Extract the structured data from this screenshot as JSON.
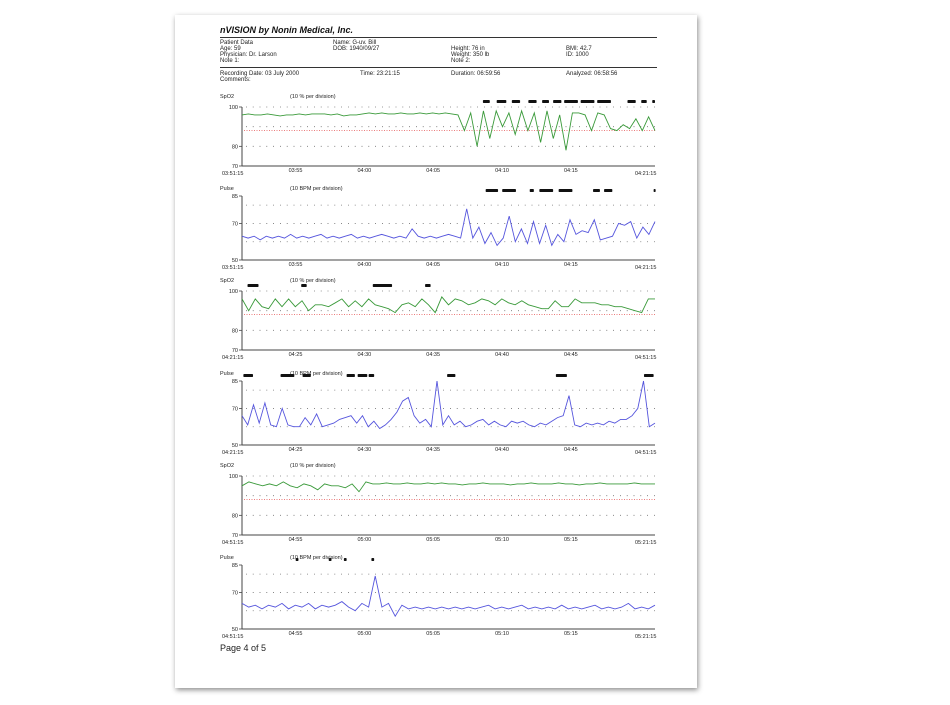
{
  "header": {
    "title": "nVISION by Nonin Medical, Inc.",
    "patient_data": "Patient Data",
    "name": "Name: G-uv. Bill",
    "age": "Age: 59",
    "dob": "DOB: 1940/09/27",
    "height": "Height: 76 in",
    "bmi": "BMI: 42.7",
    "physician": "Physician: Dr. Larson",
    "weight": "Weight: 350 lb",
    "id": "ID: 1000",
    "note1": "Note 1:",
    "note2": "Note 2:",
    "recording_date": "Recording Date: 03 July 2000",
    "time": "Time: 23:21:15",
    "duration": "Duration: 06:59:56",
    "analyzed": "Analyzed: 06:58:56",
    "comments": "Comments:"
  },
  "footer": {
    "page": "Page 4 of 5"
  },
  "colors": {
    "spo2": "#3a9a3a",
    "pulse": "#5555dd",
    "threshold": "#e03030",
    "event": "#111111"
  },
  "chart_data": [
    {
      "type": "line",
      "label": "SpO2",
      "division": "(10 % per division)",
      "yticks": [
        "100",
        "80",
        "70"
      ],
      "ytick_values": [
        100,
        80,
        70
      ],
      "ylim": [
        70,
        100
      ],
      "gridlines": [
        100,
        90,
        80
      ],
      "threshold": 88,
      "xticks": [
        "03:51:15",
        "03:55",
        "04:00",
        "04:05",
        "04:10",
        "04:15",
        "04:21:15"
      ],
      "xtick_minutes": [
        0,
        3.75,
        8.75,
        13.75,
        18.75,
        23.75,
        30
      ],
      "events": [
        [
          17.5,
          18
        ],
        [
          18.5,
          19.2
        ],
        [
          19.6,
          20.2
        ],
        [
          20.8,
          21.4
        ],
        [
          21.8,
          22.3
        ],
        [
          22.6,
          23.2
        ],
        [
          23.4,
          24.4
        ],
        [
          24.6,
          25.6
        ],
        [
          25.8,
          26.8
        ],
        [
          28.0,
          28.6
        ],
        [
          29.0,
          29.4
        ],
        [
          29.8,
          30
        ]
      ],
      "values": [
        96,
        96.5,
        96,
        96,
        96.5,
        96,
        95.5,
        96,
        96,
        96.5,
        96,
        96.5,
        96.5,
        96.5,
        96,
        96.5,
        95.5,
        96,
        96,
        96.5,
        97,
        96.5,
        97,
        96.5,
        96.5,
        97,
        96.5,
        96.5,
        97,
        96.5,
        97,
        96.5,
        97,
        96.5,
        96,
        88,
        97,
        80,
        98,
        84,
        98,
        90,
        97,
        86,
        98,
        88,
        97,
        82,
        98,
        84,
        96,
        78,
        97,
        97,
        96,
        88,
        97,
        96,
        89,
        88,
        91,
        89,
        94,
        88,
        95,
        88
      ]
    },
    {
      "type": "line",
      "label": "Pulse",
      "division": "(10 BPM per division)",
      "yticks": [
        "85",
        "70",
        "50"
      ],
      "ytick_values": [
        85,
        70,
        50
      ],
      "ylim": [
        50,
        85
      ],
      "gridlines": [
        80,
        70,
        60
      ],
      "xticks": [
        "03:51:15",
        "03:55",
        "04:00",
        "04:05",
        "04:10",
        "04:15",
        "04:21:15"
      ],
      "xtick_minutes": [
        0,
        3.75,
        8.75,
        13.75,
        18.75,
        23.75,
        30
      ],
      "events": [
        [
          17.7,
          18.6
        ],
        [
          18.9,
          19.9
        ],
        [
          20.9,
          21.2
        ],
        [
          21.6,
          22.6
        ],
        [
          23.0,
          24.0
        ],
        [
          25.5,
          26.0
        ],
        [
          26.3,
          26.9
        ],
        [
          29.9,
          30
        ]
      ],
      "values": [
        63,
        62,
        63,
        61,
        63,
        62,
        63,
        62,
        64,
        62,
        63,
        62,
        63,
        64,
        62,
        63,
        62,
        63,
        64,
        62,
        63,
        62,
        63,
        64,
        63,
        62,
        63,
        62,
        67,
        63,
        62,
        63,
        62,
        63,
        64,
        63,
        62,
        78,
        62,
        68,
        59,
        65,
        58,
        62,
        74,
        60,
        67,
        59,
        71,
        59,
        69,
        58,
        64,
        60,
        72,
        64,
        66,
        65,
        72,
        61,
        62,
        63,
        70,
        69,
        71,
        62,
        68,
        64,
        71
      ]
    },
    {
      "type": "line",
      "label": "SpO2",
      "division": "(10 % per division)",
      "yticks": [
        "100",
        "80",
        "70"
      ],
      "ytick_values": [
        100,
        80,
        70
      ],
      "ylim": [
        70,
        100
      ],
      "gridlines": [
        100,
        90,
        80
      ],
      "threshold": 88,
      "xticks": [
        "04:21:15",
        "04:25",
        "04:30",
        "04:35",
        "04:40",
        "04:45",
        "04:51:15"
      ],
      "xtick_minutes": [
        0,
        3.75,
        8.75,
        13.75,
        18.75,
        23.75,
        30
      ],
      "events": [
        [
          0.4,
          1.2
        ],
        [
          4.3,
          4.7
        ],
        [
          9.5,
          10.9
        ],
        [
          13.3,
          13.7
        ]
      ],
      "values": [
        96,
        90,
        96,
        92,
        91,
        96,
        92,
        96,
        92,
        95,
        90,
        93,
        93,
        92,
        94,
        96,
        92,
        95,
        92,
        96,
        93,
        92,
        91,
        89,
        93,
        94,
        92,
        96,
        93,
        89,
        97,
        93,
        96,
        95,
        93,
        94,
        96,
        95,
        93,
        96,
        94,
        93,
        95,
        93,
        92,
        91,
        91,
        95,
        92,
        92,
        96,
        94,
        94,
        94,
        93,
        93,
        92,
        92,
        91,
        90,
        89,
        96,
        96
      ]
    },
    {
      "type": "line",
      "label": "Pulse",
      "division": "(10 BPM per division)",
      "yticks": [
        "85",
        "70",
        "50"
      ],
      "ytick_values": [
        85,
        70,
        50
      ],
      "ylim": [
        50,
        85
      ],
      "gridlines": [
        80,
        70,
        60
      ],
      "xticks": [
        "04:21:15",
        "04:25",
        "04:30",
        "04:35",
        "04:40",
        "04:45",
        "04:51:15"
      ],
      "xtick_minutes": [
        0,
        3.75,
        8.75,
        13.75,
        18.75,
        23.75,
        30
      ],
      "events": [
        [
          0.1,
          0.8
        ],
        [
          2.8,
          3.8
        ],
        [
          4.4,
          5.0
        ],
        [
          7.6,
          8.2
        ],
        [
          8.4,
          9.1
        ],
        [
          9.2,
          9.6
        ],
        [
          14.9,
          15.5
        ],
        [
          22.8,
          23.6
        ],
        [
          29.2,
          29.9
        ]
      ],
      "values": [
        66,
        61,
        72,
        62,
        73,
        61,
        60,
        70,
        61,
        60,
        60,
        65,
        61,
        67,
        60,
        61,
        62,
        64,
        65,
        66,
        62,
        66,
        60,
        63,
        59,
        61,
        64,
        68,
        74,
        76,
        66,
        62,
        64,
        60,
        85,
        61,
        66,
        61,
        63,
        60,
        61,
        63,
        64,
        61,
        63,
        61,
        60,
        63,
        62,
        63,
        61,
        60,
        62,
        61,
        63,
        65,
        66,
        77,
        61,
        60,
        62,
        61,
        62,
        61,
        63,
        62,
        64,
        64,
        66,
        70,
        85,
        60,
        62
      ]
    },
    {
      "type": "line",
      "label": "SpO2",
      "division": "(10 % per division)",
      "yticks": [
        "100",
        "80",
        "70"
      ],
      "ytick_values": [
        100,
        80,
        70
      ],
      "ylim": [
        70,
        100
      ],
      "gridlines": [
        100,
        90,
        80
      ],
      "threshold": 88,
      "xticks": [
        "04:51:15",
        "04:55",
        "05:00",
        "05:05",
        "05:10",
        "05:15",
        "05:21:15"
      ],
      "xtick_minutes": [
        0,
        3.75,
        8.75,
        13.75,
        18.75,
        23.75,
        30
      ],
      "events": [],
      "values": [
        95,
        97,
        96,
        95,
        96,
        95,
        97,
        95,
        94,
        96,
        95,
        93,
        96,
        95,
        95,
        94,
        96,
        92,
        97,
        96,
        96,
        96.5,
        96,
        96,
        96.5,
        96,
        96,
        96.5,
        96,
        96.5,
        96,
        96,
        95.5,
        96,
        96,
        96.5,
        96,
        96,
        96,
        95.5,
        96,
        96,
        96.5,
        96,
        96,
        96,
        96.5,
        96,
        96,
        95.5,
        96,
        96,
        96.5,
        96,
        96,
        96,
        96,
        96.5,
        96,
        96,
        96
      ]
    },
    {
      "type": "line",
      "label": "Pulse",
      "division": "(10 BPM per division)",
      "yticks": [
        "85",
        "70",
        "50"
      ],
      "ytick_values": [
        85,
        70,
        50
      ],
      "ylim": [
        50,
        85
      ],
      "gridlines": [
        80,
        70,
        60
      ],
      "xticks": [
        "04:51:15",
        "04:55",
        "05:00",
        "05:05",
        "05:10",
        "05:15",
        "05:21:15"
      ],
      "xtick_minutes": [
        0,
        3.75,
        8.75,
        13.75,
        18.75,
        23.75,
        30
      ],
      "events": [
        [
          3.9,
          4.1
        ],
        [
          6.3,
          6.5
        ],
        [
          7.4,
          7.6
        ],
        [
          9.4,
          9.6
        ]
      ],
      "values": [
        64,
        62,
        63,
        61,
        63,
        62,
        64,
        61,
        63,
        62,
        64,
        61,
        63,
        62,
        63,
        65,
        62,
        60,
        64,
        62,
        79,
        62,
        64,
        57,
        63,
        61,
        62,
        61,
        62,
        61,
        62,
        61,
        62,
        61,
        62,
        61,
        62,
        63,
        61,
        62,
        61,
        62,
        63,
        61,
        62,
        61,
        62,
        61,
        63,
        61,
        62,
        61,
        62,
        63,
        61,
        62,
        61,
        62,
        64,
        61,
        62,
        61,
        63
      ]
    }
  ]
}
